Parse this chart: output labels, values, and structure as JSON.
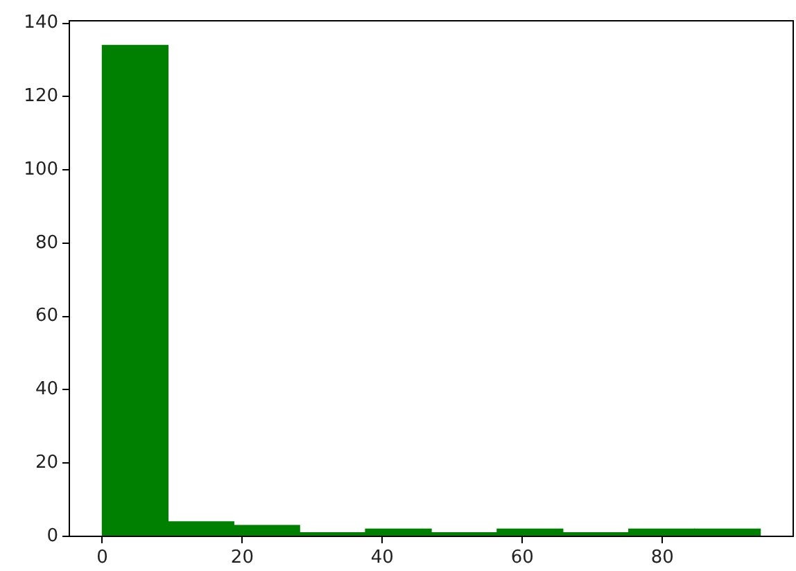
{
  "chart_data": {
    "type": "histogram",
    "bins": [
      0,
      9.4,
      18.8,
      28.2,
      37.6,
      47,
      56.4,
      65.8,
      75.2,
      84.6,
      94
    ],
    "values": [
      134,
      4,
      3,
      1,
      2,
      1,
      2,
      1,
      2,
      2
    ],
    "color": "#008000",
    "xlim": [
      -4.7,
      98.7
    ],
    "ylim": [
      0,
      140.7
    ],
    "xticks": [
      0,
      20,
      40,
      60,
      80
    ],
    "yticks": [
      0,
      20,
      40,
      60,
      80,
      100,
      120,
      140
    ],
    "grid": false,
    "legend": false
  }
}
